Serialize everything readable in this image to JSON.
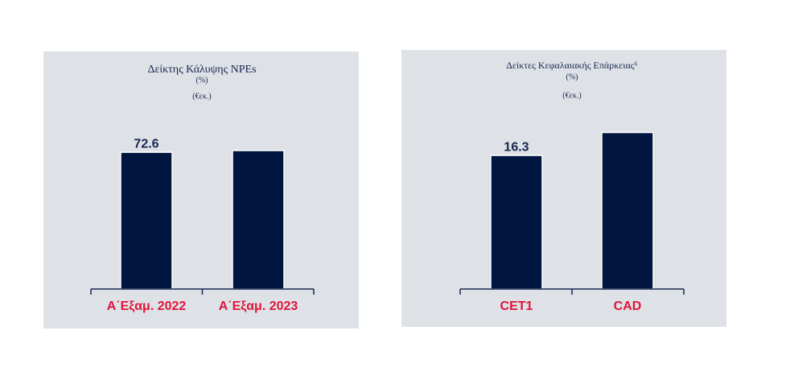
{
  "chart_data": [
    {
      "type": "bar",
      "title": "Δείκτης Κάλυψης NPEs",
      "subtitle": "(%)",
      "note": "(€εκ.)",
      "categories": [
        "Α΄Εξαμ. 2022",
        "Α΄Εξαμ. 2023"
      ],
      "values": [
        72.6,
        73.5
      ],
      "value_labels": [
        "72.6",
        null
      ],
      "color": "#001540"
    },
    {
      "type": "bar",
      "title": "Δείκτες Κεφαλαιακής Επάρκειας⁶",
      "subtitle": "(%)",
      "note": "(€εκ.)",
      "categories": [
        "CET1",
        "CAD"
      ],
      "values": [
        16.3,
        19.1
      ],
      "value_labels": [
        "16.3",
        null
      ],
      "color": "#001540"
    }
  ]
}
